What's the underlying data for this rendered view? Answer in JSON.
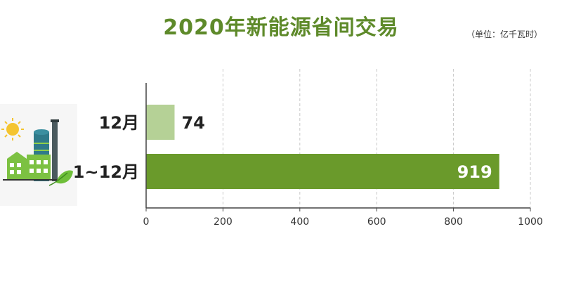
{
  "chart_data": {
    "type": "bar",
    "orientation": "horizontal",
    "title": "2020年新能源省间交易",
    "unit": "（单位：亿千瓦时）",
    "categories": [
      "12月",
      "1~12月"
    ],
    "values": [
      74,
      919
    ],
    "value_labels": [
      "74",
      "919"
    ],
    "xlim": [
      0,
      1000
    ],
    "xticks": [
      0,
      200,
      400,
      600,
      800,
      1000
    ],
    "grid": "vertical-dashed",
    "colors": {
      "bars": [
        "#b5d196",
        "#6a9a2b"
      ],
      "title": "#5e8a2a"
    }
  },
  "icons": {
    "decoration": "green-factory-icon"
  }
}
